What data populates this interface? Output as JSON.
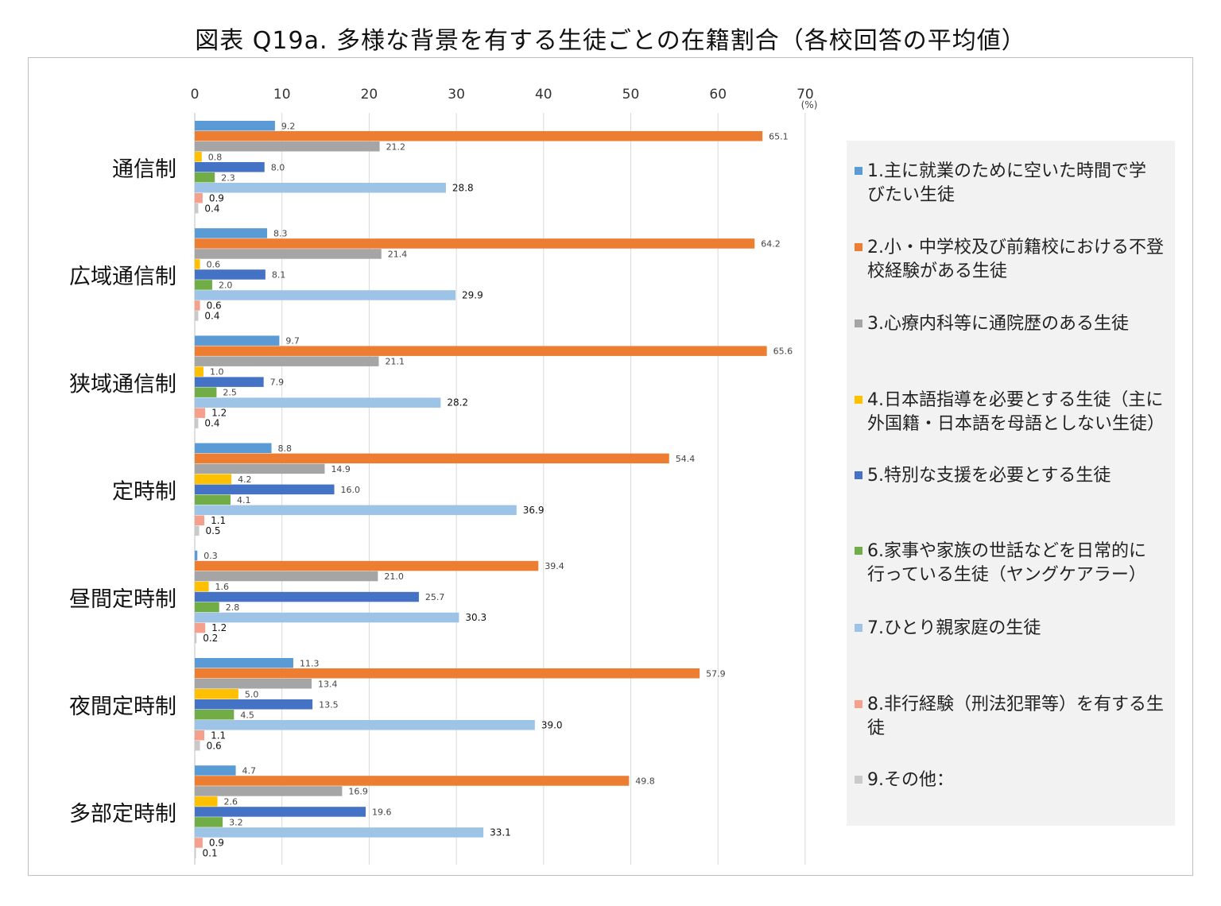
{
  "title": "図表 Q19a. 多様な背景を有する生徒ごとの在籍割合（各校回答の平均値）",
  "chart_data": {
    "type": "bar",
    "orientation": "horizontal",
    "title": "図表 Q19a. 多様な背景を有する生徒ごとの在籍割合（各校回答の平均値）",
    "xlim": [
      0,
      70
    ],
    "ticks": [
      "0",
      "10",
      "20",
      "30",
      "40",
      "50",
      "60",
      "70"
    ],
    "unit": "(%)",
    "grid": true,
    "legend_position": "right",
    "categories": [
      "通信制",
      "広域通信制",
      "狭域通信制",
      "定時制",
      "昼間定時制",
      "夜間定時制",
      "多部定時制"
    ],
    "series": [
      {
        "name": "1.主に就業のために空いた時間で学びたい生徒",
        "legend_lines": [
          "1.主に就業のために空いた時間で学",
          "びたい生徒"
        ],
        "color": "#5b9bd5",
        "values": [
          9.2,
          8.3,
          9.7,
          8.8,
          0.3,
          11.3,
          4.7
        ]
      },
      {
        "name": "2.小・中学校及び前籍校における不登校経験がある生徒",
        "legend_lines": [
          "2.小・中学校及び前籍校における不登",
          "校経験がある生徒"
        ],
        "color": "#ed7d31",
        "values": [
          65.1,
          64.2,
          65.6,
          54.4,
          39.4,
          57.9,
          49.8
        ]
      },
      {
        "name": "3.心療内科等に通院歴のある生徒",
        "legend_lines": [
          "3.心療内科等に通院歴のある生徒"
        ],
        "color": "#a5a5a5",
        "values": [
          21.2,
          21.4,
          21.1,
          14.9,
          21.0,
          13.4,
          16.9
        ]
      },
      {
        "name": "4.日本語指導を必要とする生徒（主に外国籍・日本語を母語としない生徒）",
        "legend_lines": [
          "4.日本語指導を必要とする生徒（主に",
          "外国籍・日本語を母語としない生徒）"
        ],
        "color": "#ffc000",
        "values": [
          0.8,
          0.6,
          1.0,
          4.2,
          1.6,
          5.0,
          2.6
        ]
      },
      {
        "name": "5.特別な支援を必要とする生徒",
        "legend_lines": [
          "5.特別な支援を必要とする生徒"
        ],
        "color": "#4472c4",
        "values": [
          8.0,
          8.1,
          7.9,
          16.0,
          25.7,
          13.5,
          19.6
        ]
      },
      {
        "name": "6.家事や家族の世話などを日常的に行っている生徒（ヤングケアラー）",
        "legend_lines": [
          "6.家事や家族の世話などを日常的に",
          "行っている生徒（ヤングケアラー）"
        ],
        "color": "#70ad47",
        "values": [
          2.3,
          2.0,
          2.5,
          4.1,
          2.8,
          4.5,
          3.2
        ]
      },
      {
        "name": "7.ひとり親家庭の生徒",
        "legend_lines": [
          "7.ひとり親家庭の生徒"
        ],
        "color": "#9dc3e6",
        "values": [
          28.8,
          29.9,
          28.2,
          36.9,
          30.3,
          39.0,
          33.1
        ]
      },
      {
        "name": "8.非行経験（刑法犯罪等）を有する生徒",
        "legend_lines": [
          "8.非行経験（刑法犯罪等）を有する生",
          "徒"
        ],
        "color": "#f4a08c",
        "values": [
          0.9,
          0.6,
          1.2,
          1.1,
          1.2,
          1.1,
          0.9
        ]
      },
      {
        "name": "9.その他：",
        "legend_lines": [
          "9.その他："
        ],
        "color": "#c9c9c9",
        "values": [
          0.4,
          0.4,
          0.4,
          0.5,
          0.2,
          0.6,
          0.1
        ]
      }
    ],
    "data_labels": [
      [
        "9.2",
        "65.1",
        "21.2",
        "0.8",
        "8.0",
        "2.3",
        "28.8",
        "0.9",
        "0.4"
      ],
      [
        "8.3",
        "64.2",
        "21.4",
        "0.6",
        "8.1",
        "2.0",
        "29.9",
        "0.6",
        "0.4"
      ],
      [
        "9.7",
        "65.6",
        "21.1",
        "1.0",
        "7.9",
        "2.5",
        "28.2",
        "1.2",
        "0.4"
      ],
      [
        "8.8",
        "54.4",
        "14.9",
        "4.2",
        "16.0",
        "4.1",
        "36.9",
        "1.1",
        "0.5"
      ],
      [
        "0.3",
        "39.4",
        "21.0",
        "1.6",
        "25.7",
        "2.8",
        "30.3",
        "1.2",
        "0.2"
      ],
      [
        "11.3",
        "57.9",
        "13.4",
        "5.0",
        "13.5",
        "4.5",
        "39.0",
        "1.1",
        "0.6"
      ],
      [
        "4.7",
        "49.8",
        "16.9",
        "2.6",
        "19.6",
        "3.2",
        "33.1",
        "0.9",
        "0.1"
      ]
    ]
  }
}
